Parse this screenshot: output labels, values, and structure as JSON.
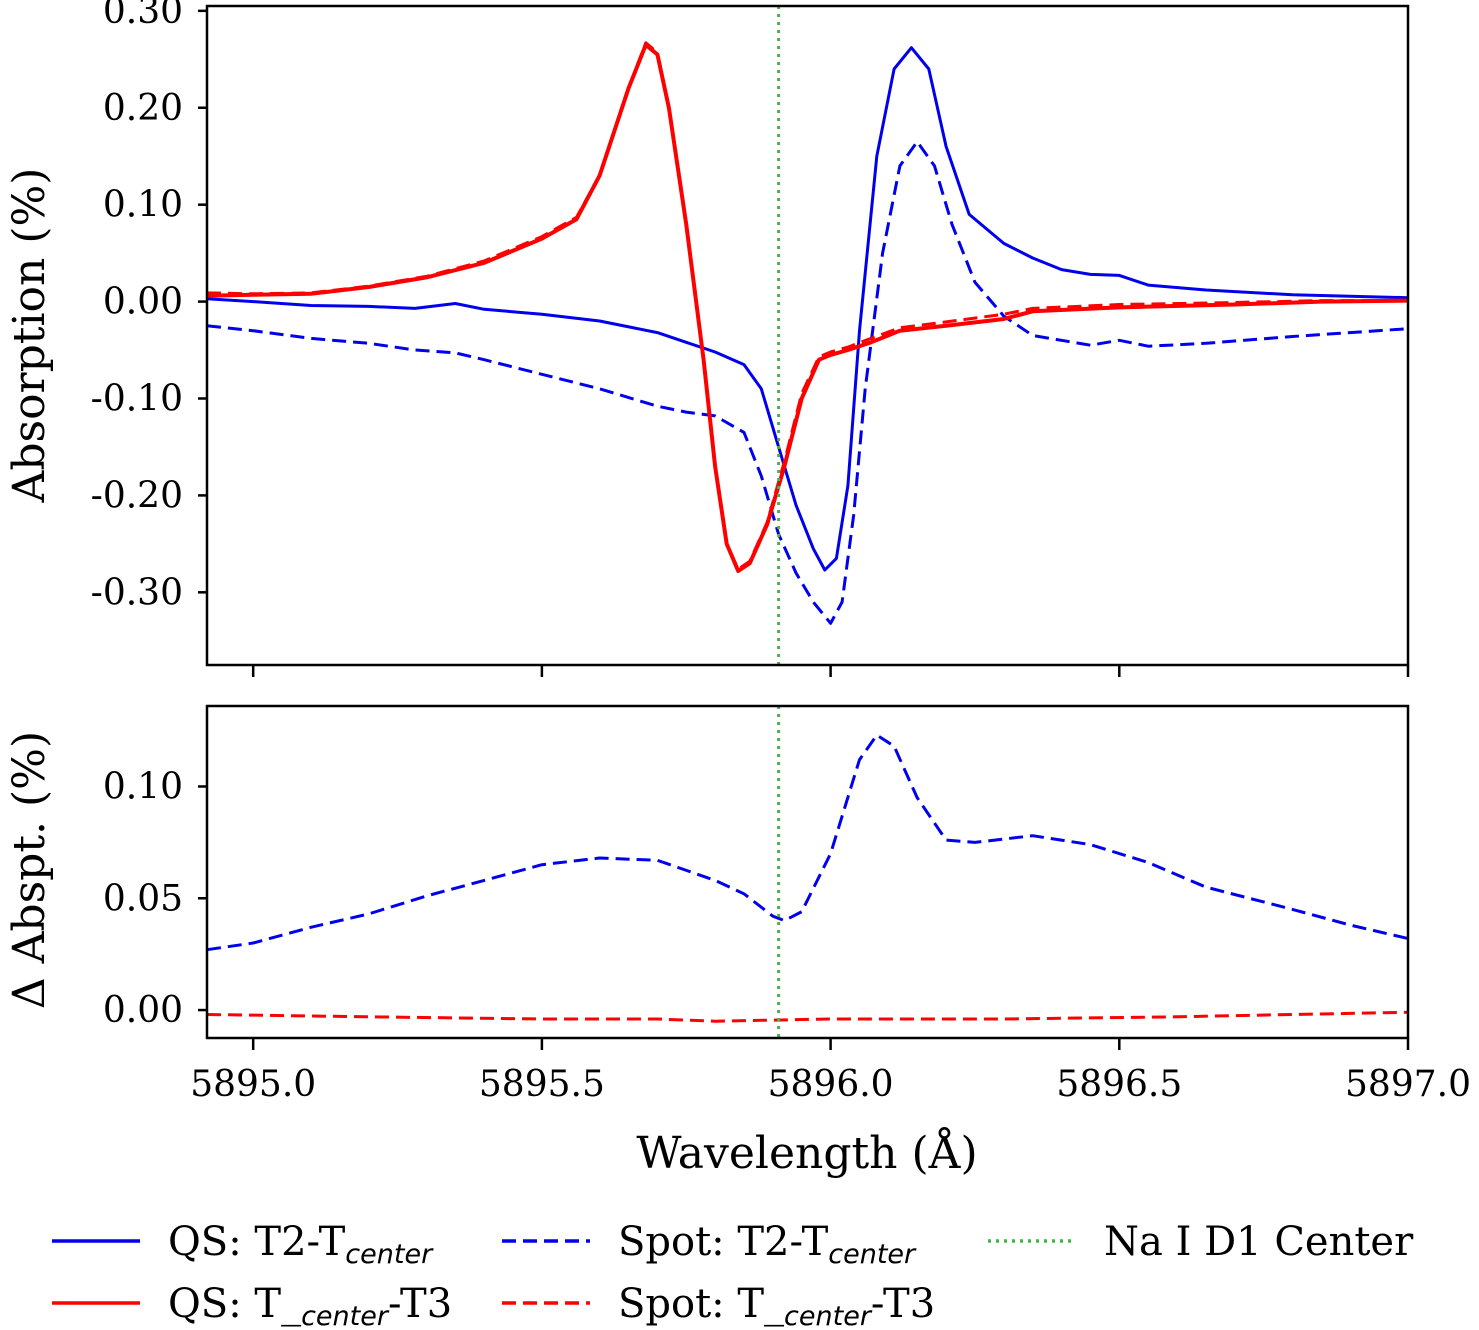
{
  "chart_data": [
    {
      "type": "line",
      "panel": "top",
      "title": "",
      "xlabel": "",
      "ylabel": "Absorption (%)",
      "xlim": [
        5894.92,
        5897.0
      ],
      "ylim": [
        -0.375,
        0.305
      ],
      "yticks": [
        0.3,
        0.2,
        0.1,
        0.0,
        -0.1,
        -0.2,
        -0.3
      ],
      "ytick_labels": [
        "0.30",
        "0.20",
        "0.10",
        "0.00",
        "-0.10",
        "-0.20",
        "-0.30"
      ],
      "vline": {
        "x": 5895.91,
        "color": "#4caf50",
        "style": "dotted"
      },
      "series": [
        {
          "name": "QS: T2-T_center",
          "color": "#0000ee",
          "style": "solid",
          "points": [
            [
              5894.92,
              0.003
            ],
            [
              5895.0,
              0.0
            ],
            [
              5895.1,
              -0.004
            ],
            [
              5895.2,
              -0.005
            ],
            [
              5895.28,
              -0.007
            ],
            [
              5895.35,
              -0.002
            ],
            [
              5895.4,
              -0.008
            ],
            [
              5895.5,
              -0.013
            ],
            [
              5895.6,
              -0.02
            ],
            [
              5895.7,
              -0.032
            ],
            [
              5895.75,
              -0.042
            ],
            [
              5895.8,
              -0.052
            ],
            [
              5895.85,
              -0.065
            ],
            [
              5895.88,
              -0.09
            ],
            [
              5895.91,
              -0.15
            ],
            [
              5895.94,
              -0.21
            ],
            [
              5895.97,
              -0.255
            ],
            [
              5895.99,
              -0.277
            ],
            [
              5896.01,
              -0.265
            ],
            [
              5896.03,
              -0.19
            ],
            [
              5896.05,
              -0.03
            ],
            [
              5896.08,
              0.15
            ],
            [
              5896.11,
              0.24
            ],
            [
              5896.14,
              0.262
            ],
            [
              5896.17,
              0.24
            ],
            [
              5896.2,
              0.16
            ],
            [
              5896.24,
              0.09
            ],
            [
              5896.3,
              0.06
            ],
            [
              5896.35,
              0.045
            ],
            [
              5896.4,
              0.033
            ],
            [
              5896.45,
              0.028
            ],
            [
              5896.5,
              0.027
            ],
            [
              5896.55,
              0.017
            ],
            [
              5896.65,
              0.012
            ],
            [
              5896.8,
              0.007
            ],
            [
              5897.0,
              0.004
            ]
          ]
        },
        {
          "name": "Spot: T2-T_center",
          "color": "#0000ee",
          "style": "dashed",
          "points": [
            [
              5894.92,
              -0.025
            ],
            [
              5895.0,
              -0.03
            ],
            [
              5895.1,
              -0.038
            ],
            [
              5895.2,
              -0.043
            ],
            [
              5895.28,
              -0.05
            ],
            [
              5895.35,
              -0.053
            ],
            [
              5895.4,
              -0.06
            ],
            [
              5895.5,
              -0.075
            ],
            [
              5895.6,
              -0.09
            ],
            [
              5895.7,
              -0.108
            ],
            [
              5895.75,
              -0.114
            ],
            [
              5895.8,
              -0.118
            ],
            [
              5895.85,
              -0.135
            ],
            [
              5895.88,
              -0.18
            ],
            [
              5895.91,
              -0.24
            ],
            [
              5895.94,
              -0.28
            ],
            [
              5895.97,
              -0.31
            ],
            [
              5896.0,
              -0.332
            ],
            [
              5896.02,
              -0.31
            ],
            [
              5896.04,
              -0.22
            ],
            [
              5896.06,
              -0.09
            ],
            [
              5896.09,
              0.05
            ],
            [
              5896.12,
              0.14
            ],
            [
              5896.15,
              0.165
            ],
            [
              5896.18,
              0.14
            ],
            [
              5896.21,
              0.08
            ],
            [
              5896.25,
              0.02
            ],
            [
              5896.3,
              -0.015
            ],
            [
              5896.35,
              -0.035
            ],
            [
              5896.45,
              -0.045
            ],
            [
              5896.5,
              -0.04
            ],
            [
              5896.55,
              -0.046
            ],
            [
              5896.65,
              -0.043
            ],
            [
              5896.8,
              -0.036
            ],
            [
              5897.0,
              -0.028
            ]
          ]
        },
        {
          "name": "QS: T_center-T3",
          "color": "#ff0000",
          "style": "solid",
          "points": [
            [
              5894.92,
              0.006
            ],
            [
              5895.0,
              0.007
            ],
            [
              5895.1,
              0.008
            ],
            [
              5895.2,
              0.015
            ],
            [
              5895.3,
              0.025
            ],
            [
              5895.4,
              0.04
            ],
            [
              5895.5,
              0.065
            ],
            [
              5895.56,
              0.085
            ],
            [
              5895.6,
              0.13
            ],
            [
              5895.65,
              0.22
            ],
            [
              5895.68,
              0.265
            ],
            [
              5895.7,
              0.255
            ],
            [
              5895.72,
              0.2
            ],
            [
              5895.75,
              0.08
            ],
            [
              5895.78,
              -0.06
            ],
            [
              5895.8,
              -0.17
            ],
            [
              5895.82,
              -0.25
            ],
            [
              5895.84,
              -0.278
            ],
            [
              5895.86,
              -0.27
            ],
            [
              5895.89,
              -0.23
            ],
            [
              5895.92,
              -0.17
            ],
            [
              5895.95,
              -0.1
            ],
            [
              5895.98,
              -0.06
            ],
            [
              5896.0,
              -0.055
            ],
            [
              5896.03,
              -0.05
            ],
            [
              5896.07,
              -0.042
            ],
            [
              5896.12,
              -0.03
            ],
            [
              5896.2,
              -0.025
            ],
            [
              5896.3,
              -0.018
            ],
            [
              5896.35,
              -0.01
            ],
            [
              5896.5,
              -0.006
            ],
            [
              5896.7,
              -0.003
            ],
            [
              5896.85,
              0.0
            ],
            [
              5897.0,
              0.001
            ]
          ]
        },
        {
          "name": "Spot: T_center-T3",
          "color": "#ff0000",
          "style": "dashed",
          "points": [
            [
              5894.92,
              0.009
            ],
            [
              5895.0,
              0.008
            ],
            [
              5895.1,
              0.009
            ],
            [
              5895.2,
              0.016
            ],
            [
              5895.3,
              0.026
            ],
            [
              5895.4,
              0.042
            ],
            [
              5895.5,
              0.067
            ],
            [
              5895.56,
              0.087
            ],
            [
              5895.6,
              0.13
            ],
            [
              5895.65,
              0.22
            ],
            [
              5895.68,
              0.267
            ],
            [
              5895.7,
              0.257
            ],
            [
              5895.72,
              0.2
            ],
            [
              5895.75,
              0.08
            ],
            [
              5895.78,
              -0.06
            ],
            [
              5895.8,
              -0.17
            ],
            [
              5895.82,
              -0.25
            ],
            [
              5895.84,
              -0.276
            ],
            [
              5895.86,
              -0.268
            ],
            [
              5895.89,
              -0.228
            ],
            [
              5895.92,
              -0.165
            ],
            [
              5895.95,
              -0.095
            ],
            [
              5895.98,
              -0.057
            ],
            [
              5896.0,
              -0.052
            ],
            [
              5896.03,
              -0.047
            ],
            [
              5896.07,
              -0.038
            ],
            [
              5896.12,
              -0.027
            ],
            [
              5896.2,
              -0.021
            ],
            [
              5896.3,
              -0.013
            ],
            [
              5896.35,
              -0.007
            ],
            [
              5896.5,
              -0.003
            ],
            [
              5896.7,
              -0.001
            ],
            [
              5896.85,
              0.001
            ],
            [
              5897.0,
              0.001
            ]
          ]
        }
      ]
    },
    {
      "type": "line",
      "panel": "bottom",
      "title": "",
      "xlabel": "Wavelength (Å)",
      "ylabel": "Δ Abspt. (%)",
      "xlim": [
        5894.92,
        5897.0
      ],
      "ylim": [
        -0.0125,
        0.136
      ],
      "xticks": [
        5895.0,
        5895.5,
        5896.0,
        5896.5,
        5897.0
      ],
      "xtick_labels": [
        "5895.0",
        "5895.5",
        "5896.0",
        "5896.5",
        "5897.0"
      ],
      "yticks": [
        0.1,
        0.05,
        0.0
      ],
      "ytick_labels": [
        "0.10",
        "0.05",
        "0.00"
      ],
      "vline": {
        "x": 5895.91,
        "color": "#4caf50",
        "style": "dotted"
      },
      "series": [
        {
          "name": "Spot: T2-T_center",
          "color": "#0000ee",
          "style": "dashed",
          "points": [
            [
              5894.92,
              0.027
            ],
            [
              5895.0,
              0.03
            ],
            [
              5895.1,
              0.037
            ],
            [
              5895.2,
              0.043
            ],
            [
              5895.3,
              0.051
            ],
            [
              5895.4,
              0.058
            ],
            [
              5895.5,
              0.065
            ],
            [
              5895.6,
              0.068
            ],
            [
              5895.7,
              0.067
            ],
            [
              5895.8,
              0.058
            ],
            [
              5895.85,
              0.052
            ],
            [
              5895.9,
              0.042
            ],
            [
              5895.92,
              0.04
            ],
            [
              5895.95,
              0.044
            ],
            [
              5896.0,
              0.07
            ],
            [
              5896.05,
              0.112
            ],
            [
              5896.08,
              0.123
            ],
            [
              5896.11,
              0.118
            ],
            [
              5896.15,
              0.095
            ],
            [
              5896.2,
              0.076
            ],
            [
              5896.25,
              0.075
            ],
            [
              5896.35,
              0.078
            ],
            [
              5896.45,
              0.074
            ],
            [
              5896.55,
              0.066
            ],
            [
              5896.65,
              0.055
            ],
            [
              5896.8,
              0.045
            ],
            [
              5896.9,
              0.038
            ],
            [
              5897.0,
              0.032
            ]
          ]
        },
        {
          "name": "Spot: T_center-T3",
          "color": "#ff0000",
          "style": "dashed",
          "points": [
            [
              5894.92,
              -0.002
            ],
            [
              5895.2,
              -0.003
            ],
            [
              5895.5,
              -0.004
            ],
            [
              5895.7,
              -0.004
            ],
            [
              5895.8,
              -0.005
            ],
            [
              5896.0,
              -0.004
            ],
            [
              5896.3,
              -0.004
            ],
            [
              5896.6,
              -0.003
            ],
            [
              5896.8,
              -0.002
            ],
            [
              5897.0,
              -0.001
            ]
          ]
        }
      ]
    }
  ],
  "legend": {
    "items": [
      {
        "main": "QS: T2-T",
        "sub": "center",
        "after": "",
        "color": "#0000ee",
        "style": "solid"
      },
      {
        "main": "Spot: T2-T",
        "sub": "center",
        "after": "",
        "color": "#0000ee",
        "style": "dashed"
      },
      {
        "main": "Na I D1 Center",
        "sub": "",
        "after": "",
        "color": "#4caf50",
        "style": "dotted"
      },
      {
        "main": "QS: T_",
        "sub": "center",
        "after": "-T3",
        "color": "#ff0000",
        "style": "solid"
      },
      {
        "main": "Spot: T_",
        "sub": "center",
        "after": "-T3",
        "color": "#ff0000",
        "style": "dashed"
      }
    ]
  }
}
